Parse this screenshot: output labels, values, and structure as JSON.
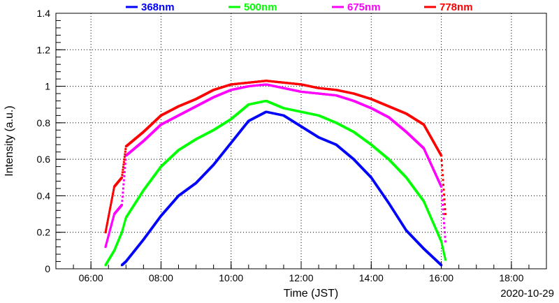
{
  "chart_data": {
    "type": "scatter",
    "xlabel": "Time (JST)",
    "ylabel": "Intensity (a.u.)",
    "date_label": "2020-10-29",
    "xlim": [
      "05:00",
      "19:00"
    ],
    "ylim": [
      0,
      1.4
    ],
    "x_ticks": [
      "06:00",
      "08:00",
      "10:00",
      "12:00",
      "14:00",
      "16:00",
      "18:00"
    ],
    "y_ticks": [
      "0",
      "0.2",
      "0.4",
      "0.6",
      "0.8",
      "1",
      "1.2",
      "1.4"
    ],
    "grid": true,
    "legend_position": "top",
    "series": [
      {
        "name": "368nm",
        "color": "#0000ff",
        "x": [
          "06:53",
          "07:00",
          "07:30",
          "08:00",
          "08:30",
          "09:00",
          "09:30",
          "10:00",
          "10:30",
          "11:00",
          "11:30",
          "12:00",
          "12:30",
          "13:00",
          "13:30",
          "14:00",
          "14:30",
          "15:00",
          "15:30",
          "16:00"
        ],
        "y": [
          0.02,
          0.04,
          0.16,
          0.29,
          0.4,
          0.47,
          0.57,
          0.69,
          0.81,
          0.86,
          0.84,
          0.78,
          0.72,
          0.68,
          0.6,
          0.5,
          0.36,
          0.21,
          0.11,
          0.02
        ]
      },
      {
        "name": "500nm",
        "color": "#00ff00",
        "x": [
          "06:25",
          "06:40",
          "06:53",
          "07:00",
          "07:30",
          "08:00",
          "08:30",
          "09:00",
          "09:30",
          "10:00",
          "10:30",
          "11:00",
          "11:30",
          "12:00",
          "12:30",
          "13:00",
          "13:30",
          "14:00",
          "14:30",
          "15:00",
          "15:30",
          "16:00",
          "16:07"
        ],
        "y": [
          0.02,
          0.1,
          0.2,
          0.28,
          0.43,
          0.56,
          0.65,
          0.71,
          0.76,
          0.82,
          0.9,
          0.92,
          0.88,
          0.86,
          0.84,
          0.8,
          0.75,
          0.68,
          0.6,
          0.5,
          0.37,
          0.15,
          0.05
        ]
      },
      {
        "name": "675nm",
        "color": "#ff00ff",
        "x": [
          "06:25",
          "06:40",
          "06:53",
          "07:00",
          "07:30",
          "08:00",
          "08:30",
          "09:00",
          "09:30",
          "10:00",
          "10:30",
          "11:00",
          "11:30",
          "12:00",
          "12:30",
          "13:00",
          "13:30",
          "14:00",
          "14:30",
          "15:00",
          "15:30",
          "16:00",
          "16:07"
        ],
        "y": [
          0.12,
          0.3,
          0.35,
          0.62,
          0.7,
          0.79,
          0.84,
          0.89,
          0.94,
          0.98,
          1.0,
          1.01,
          0.99,
          0.97,
          0.96,
          0.95,
          0.92,
          0.88,
          0.83,
          0.75,
          0.66,
          0.45,
          0.15
        ]
      },
      {
        "name": "778nm",
        "color": "#ff0000",
        "x": [
          "06:25",
          "06:40",
          "06:53",
          "07:00",
          "07:30",
          "08:00",
          "08:30",
          "09:00",
          "09:30",
          "10:00",
          "10:30",
          "11:00",
          "11:30",
          "12:00",
          "12:30",
          "13:00",
          "13:30",
          "14:00",
          "14:30",
          "15:00",
          "15:30",
          "16:00",
          "16:07"
        ],
        "y": [
          0.2,
          0.45,
          0.5,
          0.67,
          0.75,
          0.84,
          0.89,
          0.93,
          0.98,
          1.01,
          1.02,
          1.03,
          1.02,
          1.01,
          0.99,
          0.98,
          0.96,
          0.93,
          0.89,
          0.85,
          0.79,
          0.62,
          0.3
        ]
      }
    ]
  }
}
